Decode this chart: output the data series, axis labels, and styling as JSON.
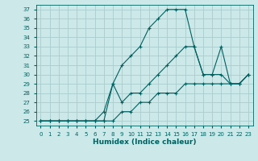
{
  "xlabel": "Humidex (Indice chaleur)",
  "ylabel": "",
  "bg_color": "#cce8e8",
  "grid_color": "#aacccc",
  "line_color": "#006060",
  "xlim": [
    -0.5,
    23.5
  ],
  "ylim": [
    24.5,
    37.5
  ],
  "yticks": [
    25,
    26,
    27,
    28,
    29,
    30,
    31,
    32,
    33,
    34,
    35,
    36,
    37
  ],
  "xticks": [
    0,
    1,
    2,
    3,
    4,
    5,
    6,
    7,
    8,
    9,
    10,
    11,
    12,
    13,
    14,
    15,
    16,
    17,
    18,
    19,
    20,
    21,
    22,
    23
  ],
  "xtick_labels": [
    "0",
    "1",
    "2",
    "3",
    "4",
    "5",
    "6",
    "7",
    "8",
    "9",
    "10",
    "11",
    "12",
    "13",
    "14",
    "15",
    "16",
    "17",
    "18",
    "19",
    "20",
    "21",
    "22",
    "23"
  ],
  "series1": [
    25,
    25,
    25,
    25,
    25,
    25,
    25,
    25,
    29,
    31,
    32,
    33,
    35,
    36,
    37,
    37,
    37,
    33,
    30,
    30,
    33,
    29,
    29,
    30
  ],
  "series2": [
    25,
    25,
    25,
    25,
    25,
    25,
    25,
    26,
    29,
    27,
    28,
    28,
    29,
    30,
    31,
    32,
    33,
    33,
    30,
    30,
    30,
    29,
    29,
    30
  ],
  "series3": [
    25,
    25,
    25,
    25,
    25,
    25,
    25,
    25,
    25,
    26,
    26,
    27,
    27,
    28,
    28,
    28,
    29,
    29,
    29,
    29,
    29,
    29,
    29,
    30
  ]
}
